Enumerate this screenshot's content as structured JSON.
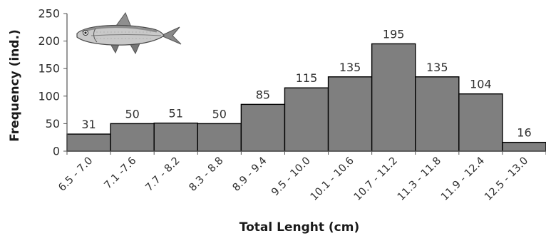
{
  "chart_data": {
    "type": "bar",
    "categories": [
      "6.5 - 7.0",
      "7.1 -7.6",
      "7.7 - 8.2",
      "8.3 - 8.8",
      "8.9 - 9.4",
      "9.5 - 10.0",
      "10.1 - 10.6",
      "10.7 - 11.2",
      "11.3 - 11.8",
      "11.9 - 12.4",
      "12.5 - 13.0"
    ],
    "values": [
      31,
      50,
      51,
      50,
      85,
      115,
      135,
      195,
      135,
      104,
      16
    ],
    "data_labels": [
      "31",
      "50",
      "51",
      "50",
      "85",
      "115",
      "135",
      "195",
      "135",
      "104",
      "16"
    ],
    "xlabel": "Total Lenght (cm)",
    "ylabel": "Frequency (ind.)",
    "ylim": [
      0,
      250
    ],
    "yticks": [
      "0",
      "50",
      "100",
      "150",
      "200",
      "250"
    ],
    "grid": false,
    "bar_color": "#7f7f7f",
    "bar_edge_color": "#000000",
    "illustration": "fish-icon"
  }
}
